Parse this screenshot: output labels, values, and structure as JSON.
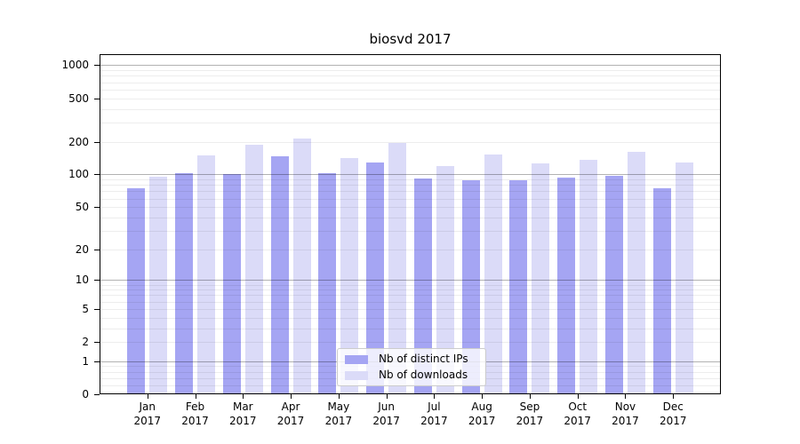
{
  "chart_data": {
    "type": "bar",
    "title": "biosvd 2017",
    "categories": [
      "Jan",
      "Feb",
      "Mar",
      "Apr",
      "May",
      "Jun",
      "Jul",
      "Aug",
      "Sep",
      "Oct",
      "Nov",
      "Dec"
    ],
    "x_year_label": "2017",
    "series": [
      {
        "name": "Nb of distinct IPs",
        "color": "#a5a5f3",
        "values": [
          75,
          103,
          100,
          147,
          102,
          130,
          92,
          89,
          88,
          93,
          97,
          75
        ]
      },
      {
        "name": "Nb of downloads",
        "color": "#dbdbf8",
        "values": [
          95,
          150,
          187,
          213,
          141,
          195,
          120,
          152,
          126,
          136,
          161,
          128
        ]
      }
    ],
    "yscale": "log1p",
    "yticks": [
      0,
      1,
      2,
      5,
      10,
      20,
      50,
      100,
      200,
      500,
      1000
    ],
    "ylim": [
      0,
      1260
    ],
    "xlabel": "",
    "ylabel": "",
    "grid": "horizontal",
    "legend_position": "lower center"
  },
  "colors": {
    "background": "#ffffff",
    "spine": "#000000",
    "major_grid": "rgba(0,0,0,0.30)",
    "minor_grid": "rgba(0,0,0,0.07)",
    "bar_dark": "#a5a5f3",
    "bar_light": "#dbdbf8"
  }
}
